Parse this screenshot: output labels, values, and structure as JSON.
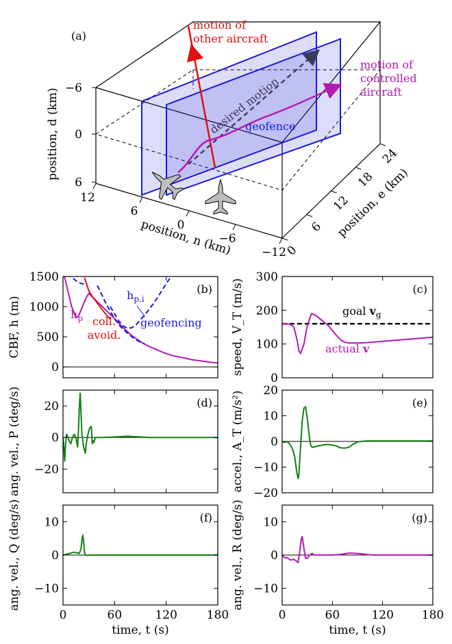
{
  "colors": {
    "magenta": "#b21ab2",
    "red": "#e01010",
    "blue": "#1a1ae0",
    "navy": "#3a3a5a",
    "green": "#108010",
    "black": "#000000",
    "plane_fill": "#bdbdbd"
  },
  "chart_data": [
    {
      "panel": "(a)",
      "type": "3d-trajectory",
      "axes": {
        "n": {
          "label": "position, n (km)",
          "ticks": [
            "12",
            "6",
            "0",
            "−6",
            "−12"
          ],
          "range": [
            12,
            -12
          ]
        },
        "e": {
          "label": "position, e (km)",
          "ticks": [
            "0",
            "6",
            "12",
            "18",
            "24"
          ],
          "range": [
            0,
            24
          ]
        },
        "d": {
          "label": "position, d (km)",
          "ticks": [
            "−6",
            "0",
            "6"
          ],
          "range": [
            -6,
            6
          ]
        }
      },
      "annotations": {
        "other": "motion of\nother aircraft",
        "controlled": "motion of\ncontrolled\naircraft",
        "desired": "desired motion",
        "geofence": "geofence"
      },
      "icons": [
        "aircraft-icon",
        "aircraft-icon"
      ]
    },
    {
      "panel": "(b)",
      "type": "line",
      "xlim": [
        0,
        180
      ],
      "ylim": [
        -180,
        1500
      ],
      "yticks": [
        0,
        500,
        1000,
        1500
      ],
      "ylabel": "CBF, h (m)",
      "series": [
        {
          "key": "hp",
          "label": "h_p",
          "color": "#b21ab2",
          "style": "solid",
          "x": [
            0,
            5,
            10,
            15,
            18,
            22,
            27,
            30,
            40,
            50,
            60,
            70,
            80,
            90,
            100,
            110,
            120,
            130,
            140,
            150,
            160,
            170,
            180
          ],
          "y": [
            1600,
            1300,
            1000,
            820,
            840,
            980,
            1150,
            1220,
            1080,
            940,
            800,
            650,
            520,
            420,
            340,
            280,
            220,
            180,
            150,
            120,
            100,
            80,
            65
          ]
        },
        {
          "key": "coll",
          "label": "coll. avoid.",
          "color": "#e01010",
          "style": "solid",
          "x": [
            25,
            30,
            35,
            40,
            45,
            50,
            55
          ],
          "y": [
            1480,
            1260,
            1150,
            1060,
            960,
            870,
            790
          ]
        },
        {
          "key": "hpi_a",
          "label": "h_p,i",
          "color": "#1a1ae0",
          "style": "dashed",
          "x": [
            0,
            5,
            10,
            15,
            20,
            25,
            28
          ],
          "y": [
            1650,
            1560,
            1490,
            1430,
            1390,
            1370,
            1380
          ]
        },
        {
          "key": "hpi_b",
          "label": "",
          "color": "#1a1ae0",
          "style": "dashed",
          "x": [
            55,
            60,
            65,
            70,
            75,
            80,
            85,
            90,
            100,
            110,
            120,
            128
          ],
          "y": [
            1000,
            880,
            760,
            680,
            640,
            650,
            700,
            780,
            950,
            1150,
            1380,
            1550
          ]
        },
        {
          "key": "hpi_c",
          "label": "",
          "color": "#1a1ae0",
          "style": "dashed",
          "x": [
            40,
            45,
            50,
            55,
            60,
            65,
            70,
            75,
            80,
            85,
            90,
            95
          ],
          "y": [
            1350,
            1200,
            1050,
            920,
            800,
            700,
            620,
            560,
            500,
            450,
            410,
            380
          ]
        }
      ],
      "labels": {
        "hp": "h",
        "hp_sub": "p",
        "hpi": "h",
        "hpi_sub": "p,i",
        "coll": "coll.\navoid.",
        "geof": "geofencing"
      }
    },
    {
      "panel": "(c)",
      "type": "line",
      "xlim": [
        0,
        180
      ],
      "ylim": [
        0,
        300
      ],
      "yticks": [
        0,
        100,
        200,
        300
      ],
      "ylabel": "speed, V_T (m/s)",
      "series": [
        {
          "key": "goal",
          "label": "goal v_g",
          "color": "#000000",
          "style": "dashed",
          "x": [
            0,
            180
          ],
          "y": [
            160,
            160
          ]
        },
        {
          "key": "actual",
          "label": "actual v",
          "color": "#b21ab2",
          "style": "solid",
          "x": [
            0,
            5,
            10,
            14,
            18,
            20,
            22,
            26,
            30,
            35,
            40,
            45,
            50,
            55,
            60,
            65,
            70,
            75,
            80,
            90,
            100,
            110,
            120,
            130,
            140,
            150,
            160,
            170,
            180
          ],
          "y": [
            160,
            160,
            158,
            150,
            110,
            80,
            72,
            100,
            155,
            190,
            185,
            175,
            165,
            155,
            140,
            125,
            112,
            105,
            103,
            103,
            104,
            106,
            108,
            110,
            112,
            114,
            116,
            118,
            120
          ]
        }
      ],
      "labels": {
        "goal": "goal",
        "goal_v": "v",
        "goal_sub": "g",
        "actual": "actual",
        "actual_v": "v"
      }
    },
    {
      "panel": "(d)",
      "type": "line",
      "xlim": [
        0,
        180
      ],
      "ylim": [
        -35,
        30
      ],
      "yticks": [
        -20,
        0,
        20
      ],
      "ylabel": "ang. vel., P (deg/s)",
      "series": [
        {
          "key": "P",
          "label": "",
          "color": "#108010",
          "style": "solid",
          "x": [
            0,
            1,
            2,
            3,
            4,
            5,
            7,
            9,
            11,
            13,
            15,
            17,
            18,
            19,
            20,
            21,
            22,
            24,
            26,
            27,
            29,
            31,
            33,
            34,
            35,
            36,
            37,
            38,
            40,
            45,
            60,
            75,
            85,
            100,
            120,
            140,
            160,
            180
          ],
          "y": [
            0,
            -6,
            -15,
            -4,
            2,
            1,
            -2,
            -4,
            0,
            2,
            0,
            -6,
            5,
            20,
            28,
            15,
            2,
            -6,
            -10,
            -4,
            2,
            6,
            7,
            -4,
            -2,
            -3,
            -1,
            0,
            0,
            0,
            0.3,
            0.8,
            0.5,
            0,
            0,
            0,
            0,
            0
          ]
        }
      ]
    },
    {
      "panel": "(e)",
      "type": "line",
      "xlim": [
        0,
        180
      ],
      "ylim": [
        -20,
        20
      ],
      "yticks": [
        -20,
        -10,
        0,
        10,
        20
      ],
      "ylabel": "accel., A_T (m/s²)",
      "series": [
        {
          "key": "A",
          "label": "",
          "color": "#108010",
          "style": "solid",
          "x": [
            0,
            3,
            6,
            9,
            11,
            13,
            15,
            17,
            19,
            20,
            22,
            24,
            26,
            28,
            30,
            32,
            34,
            36,
            40,
            45,
            50,
            55,
            60,
            65,
            70,
            75,
            80,
            85,
            90,
            100,
            120,
            140,
            160,
            180
          ],
          "y": [
            0,
            -0.4,
            0,
            -1,
            -2,
            -3.5,
            -6,
            -11,
            -14.5,
            -13,
            -2,
            8,
            13,
            13.5,
            9,
            3,
            -1.5,
            -2.3,
            -2,
            -1.6,
            -1.3,
            -1.2,
            -1.4,
            -1.8,
            -2.5,
            -2.6,
            -2.2,
            -1,
            -0.2,
            0.2,
            0.2,
            0.2,
            0.2,
            0.2
          ]
        }
      ]
    },
    {
      "panel": "(f)",
      "type": "line",
      "xlim": [
        0,
        180
      ],
      "xticks": [
        0,
        60,
        120,
        180
      ],
      "ylim": [
        -15,
        15
      ],
      "yticks": [
        -10,
        0,
        10
      ],
      "ylabel": "ang. vel., Q (deg/s)",
      "xlabel": "time, t (s)",
      "series": [
        {
          "key": "Q",
          "label": "",
          "color": "#108010",
          "style": "solid",
          "x": [
            0,
            4,
            8,
            12,
            16,
            19,
            21,
            22,
            23,
            24,
            25,
            26,
            28,
            30,
            40,
            60,
            90,
            120,
            150,
            180
          ],
          "y": [
            0,
            0.2,
            0.5,
            0.8,
            0.7,
            0.5,
            2,
            4.5,
            6,
            4,
            1,
            0,
            -0.1,
            0,
            0,
            0,
            0,
            0,
            0,
            0
          ]
        }
      ]
    },
    {
      "panel": "(g)",
      "type": "line",
      "xlim": [
        0,
        180
      ],
      "xticks": [
        0,
        60,
        120,
        180
      ],
      "ylim": [
        -15,
        15
      ],
      "yticks": [
        -10,
        0,
        10
      ],
      "ylabel": "ang. vel., R (deg/s)",
      "xlabel": "time, t (s)",
      "series": [
        {
          "key": "R",
          "label": "",
          "color": "#b21ab2",
          "style": "solid",
          "x": [
            0,
            3,
            6,
            10,
            14,
            17,
            19,
            21,
            23,
            24,
            26,
            28,
            30,
            33,
            36,
            38,
            42,
            50,
            60,
            70,
            80,
            90,
            100,
            110,
            120,
            140,
            160,
            180
          ],
          "y": [
            0,
            -0.8,
            -0.8,
            -1.5,
            -1.3,
            -1.8,
            -2.3,
            1,
            5,
            5.5,
            2,
            -1,
            -1,
            0,
            0.5,
            0,
            0,
            0,
            0,
            0.2,
            0.6,
            0.5,
            0.2,
            0,
            0,
            0,
            0,
            0
          ]
        }
      ]
    }
  ]
}
